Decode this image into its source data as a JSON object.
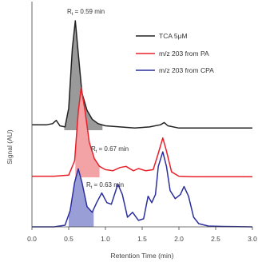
{
  "chart_data": {
    "type": "line",
    "xlabel": "Retention Time (min)",
    "ylabel": "Signal (AU)",
    "xlim": [
      0.0,
      3.0
    ],
    "x_ticks": [
      "0.0",
      "0.5",
      "1.0",
      "1.5",
      "2.0",
      "2.5",
      "3.0"
    ],
    "grid": false,
    "legend_position": "right",
    "series": [
      {
        "name": "TCA 5μM",
        "color": "#222222",
        "fill_color": "#9a9a9a",
        "shaded_range": [
          0.44,
          0.96
        ],
        "annotation": "R",
        "annotation_sub": "t",
        "annotation_value": " = 0.59 min",
        "points": [
          [
            0.0,
            0.05
          ],
          [
            0.2,
            0.05
          ],
          [
            0.28,
            0.06
          ],
          [
            0.33,
            0.09
          ],
          [
            0.38,
            0.04
          ],
          [
            0.45,
            0.03
          ],
          [
            0.5,
            0.2
          ],
          [
            0.55,
            0.75
          ],
          [
            0.59,
            1.0
          ],
          [
            0.63,
            0.7
          ],
          [
            0.68,
            0.34
          ],
          [
            0.75,
            0.18
          ],
          [
            0.82,
            0.1
          ],
          [
            0.9,
            0.06
          ],
          [
            1.0,
            0.04
          ],
          [
            1.2,
            0.03
          ],
          [
            1.4,
            0.02
          ],
          [
            1.6,
            0.03
          ],
          [
            1.75,
            0.05
          ],
          [
            1.8,
            0.07
          ],
          [
            1.85,
            0.04
          ],
          [
            2.0,
            0.02
          ],
          [
            2.3,
            0.02
          ],
          [
            2.6,
            0.02
          ],
          [
            3.0,
            0.02
          ]
        ]
      },
      {
        "name": "m/z 203 from PA",
        "color": "#e8202a",
        "fill_color": "#f3a3a6",
        "shaded_range": [
          0.59,
          0.92
        ],
        "annotation": "R",
        "annotation_sub": "t",
        "annotation_value": " = 0.67 min",
        "points": [
          [
            0.0,
            0.01
          ],
          [
            0.3,
            0.01
          ],
          [
            0.5,
            0.02
          ],
          [
            0.58,
            0.15
          ],
          [
            0.63,
            0.6
          ],
          [
            0.67,
            0.82
          ],
          [
            0.72,
            0.62
          ],
          [
            0.78,
            0.32
          ],
          [
            0.85,
            0.17
          ],
          [
            0.92,
            0.1
          ],
          [
            1.0,
            0.07
          ],
          [
            1.1,
            0.06
          ],
          [
            1.2,
            0.09
          ],
          [
            1.28,
            0.1
          ],
          [
            1.38,
            0.06
          ],
          [
            1.45,
            0.08
          ],
          [
            1.55,
            0.06
          ],
          [
            1.65,
            0.07
          ],
          [
            1.72,
            0.22
          ],
          [
            1.78,
            0.36
          ],
          [
            1.83,
            0.24
          ],
          [
            1.9,
            0.05
          ],
          [
            2.0,
            0.01
          ],
          [
            2.2,
            0.005
          ],
          [
            2.5,
            0.005
          ],
          [
            3.0,
            0.005
          ]
        ]
      },
      {
        "name": "m/z 203 from CPA",
        "color": "#2b2f9e",
        "fill_color": "#9a9ed6",
        "shaded_range": [
          0.5,
          0.84
        ],
        "annotation": "R",
        "annotation_sub": "t",
        "annotation_value": " = 0.63 min",
        "points": [
          [
            0.0,
            0.0
          ],
          [
            0.3,
            0.0
          ],
          [
            0.45,
            0.02
          ],
          [
            0.52,
            0.2
          ],
          [
            0.58,
            0.55
          ],
          [
            0.63,
            0.72
          ],
          [
            0.68,
            0.55
          ],
          [
            0.75,
            0.25
          ],
          [
            0.82,
            0.18
          ],
          [
            0.88,
            0.3
          ],
          [
            0.95,
            0.42
          ],
          [
            1.02,
            0.3
          ],
          [
            1.08,
            0.28
          ],
          [
            1.17,
            0.53
          ],
          [
            1.23,
            0.4
          ],
          [
            1.3,
            0.12
          ],
          [
            1.37,
            0.18
          ],
          [
            1.45,
            0.08
          ],
          [
            1.52,
            0.1
          ],
          [
            1.58,
            0.38
          ],
          [
            1.63,
            0.3
          ],
          [
            1.68,
            0.4
          ],
          [
            1.72,
            0.75
          ],
          [
            1.78,
            0.93
          ],
          [
            1.83,
            0.75
          ],
          [
            1.88,
            0.45
          ],
          [
            1.95,
            0.35
          ],
          [
            2.02,
            0.4
          ],
          [
            2.07,
            0.5
          ],
          [
            2.13,
            0.38
          ],
          [
            2.2,
            0.12
          ],
          [
            2.27,
            0.04
          ],
          [
            2.4,
            0.01
          ],
          [
            2.6,
            0.005
          ],
          [
            3.0,
            0.0
          ]
        ]
      }
    ]
  }
}
